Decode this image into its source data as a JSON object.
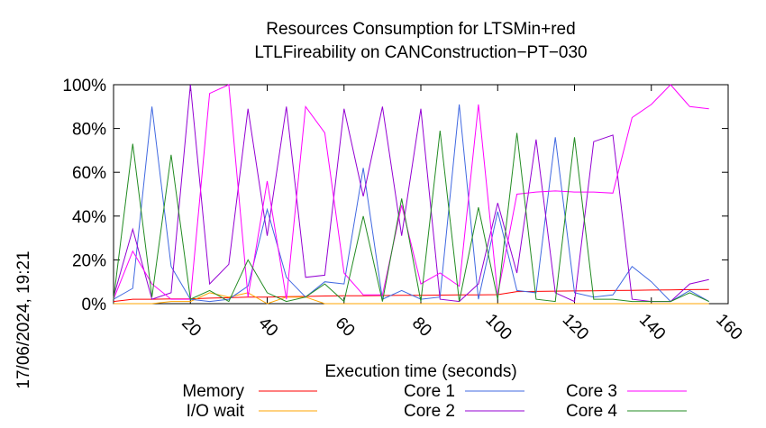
{
  "chart_data": {
    "type": "line",
    "title_lines": [
      "Resources Consumption for LTSMin+red",
      "LTLFireability on CANConstruction−PT−030"
    ],
    "xlabel": "Execution time (seconds)",
    "ylabel": "",
    "side_label": "17/06/2024, 19:21",
    "xlim": [
      0,
      160
    ],
    "ylim": [
      0,
      100
    ],
    "xticks": [
      20,
      40,
      60,
      80,
      100,
      120,
      140,
      160
    ],
    "yticks": [
      0,
      20,
      40,
      60,
      80,
      100
    ],
    "ytick_suffix": "%",
    "grid": false,
    "legend_position": "bottom",
    "series": [
      {
        "name": "Memory",
        "color": "#ff0000",
        "x": [
          0,
          5,
          10,
          15,
          20,
          25,
          30,
          35,
          40,
          45,
          50,
          55,
          60,
          65,
          70,
          75,
          80,
          85,
          90,
          95,
          100,
          105,
          110,
          115,
          120,
          125,
          130,
          135,
          140,
          145,
          150,
          155
        ],
        "y": [
          1,
          2,
          2,
          2.2,
          2.2,
          2.5,
          2.7,
          3,
          3,
          3.2,
          3.3,
          3.5,
          3.6,
          3.6,
          3.7,
          3.8,
          3.8,
          3.9,
          4,
          4,
          4.1,
          5.5,
          5.6,
          5.7,
          5.8,
          5.9,
          6,
          6.1,
          6.2,
          6.3,
          6.4,
          6.5
        ]
      },
      {
        "name": "I/O wait",
        "color": "#ffa500",
        "x": [
          0,
          5,
          10,
          15,
          20,
          25,
          30,
          35,
          40,
          45,
          50,
          55,
          60,
          65,
          70,
          75,
          80,
          85,
          90,
          95,
          100,
          105,
          110,
          115,
          120,
          125,
          130,
          135,
          140,
          145,
          150,
          155
        ],
        "y": [
          0,
          0,
          0,
          1,
          1,
          5,
          3,
          5,
          0,
          3,
          3,
          0,
          0,
          0,
          0,
          0,
          0,
          0,
          0,
          0,
          0,
          0,
          0,
          0,
          0,
          0,
          0,
          0,
          0,
          0,
          0,
          0
        ]
      },
      {
        "name": "Core 1",
        "color": "#4169e1",
        "x": [
          0,
          5,
          10,
          15,
          20,
          25,
          30,
          35,
          40,
          45,
          50,
          55,
          60,
          65,
          70,
          75,
          80,
          85,
          90,
          95,
          100,
          105,
          110,
          115,
          120,
          125,
          130,
          135,
          140,
          145,
          150,
          155
        ],
        "y": [
          2,
          7,
          90,
          17,
          2,
          1,
          2,
          8,
          43,
          12,
          3,
          10,
          9,
          62,
          2,
          6,
          2,
          3,
          91,
          2,
          42,
          6,
          5,
          76,
          5,
          3,
          4,
          17,
          10,
          1,
          6,
          1
        ]
      },
      {
        "name": "Core 2",
        "color": "#9400d3",
        "x": [
          0,
          5,
          10,
          15,
          20,
          25,
          30,
          35,
          40,
          45,
          50,
          55,
          60,
          65,
          70,
          75,
          80,
          85,
          90,
          95,
          100,
          105,
          110,
          115,
          120,
          125,
          130,
          135,
          140,
          145,
          150,
          155
        ],
        "y": [
          3,
          34,
          2,
          5,
          100,
          9,
          18,
          89,
          31,
          90,
          12,
          13,
          89,
          49,
          90,
          31,
          89,
          2,
          1,
          9,
          46,
          14,
          75,
          5,
          1,
          74,
          77,
          2,
          1,
          1,
          9,
          11
        ]
      },
      {
        "name": "Core 3",
        "color": "#ff00ff",
        "x": [
          0,
          5,
          10,
          15,
          20,
          25,
          30,
          35,
          40,
          45,
          50,
          55,
          60,
          65,
          70,
          75,
          80,
          85,
          90,
          95,
          100,
          105,
          110,
          115,
          120,
          125,
          130,
          135,
          140,
          145,
          150,
          155
        ],
        "y": [
          2,
          24,
          9,
          2,
          2,
          96,
          100,
          3,
          56,
          2,
          90,
          78,
          14,
          4,
          4,
          45,
          9,
          14,
          8,
          91,
          4,
          50,
          51,
          51.5,
          51,
          51,
          50.5,
          85,
          91,
          100,
          90,
          89
        ]
      },
      {
        "name": "Core 4",
        "color": "#228b22",
        "x": [
          0,
          5,
          10,
          15,
          20,
          25,
          30,
          35,
          40,
          45,
          50,
          55,
          60,
          65,
          70,
          75,
          80,
          85,
          90,
          95,
          100,
          105,
          110,
          115,
          120,
          125,
          130,
          135,
          140,
          145,
          150,
          155
        ],
        "y": [
          2,
          73,
          3,
          68,
          2,
          6,
          1,
          20,
          5,
          1,
          3,
          9,
          1,
          40,
          1,
          48,
          1,
          79,
          1,
          44,
          2,
          78,
          2,
          1,
          76,
          2,
          2,
          1,
          1,
          1,
          5,
          1
        ]
      }
    ]
  }
}
